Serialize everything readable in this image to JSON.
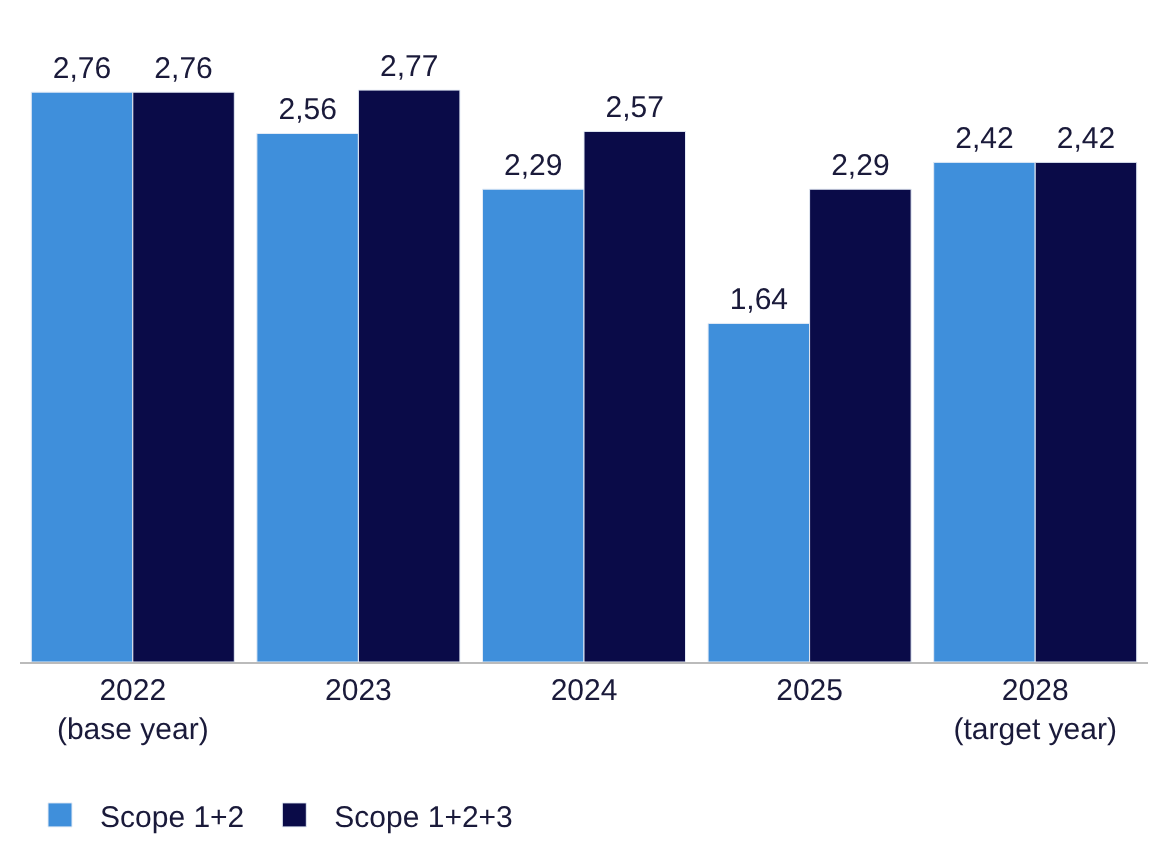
{
  "chart_data": {
    "type": "bar",
    "categories": [
      "2022\n(base year)",
      "2023",
      "2024",
      "2025",
      "2028\n(target year)"
    ],
    "series": [
      {
        "name": "Scope 1+2",
        "color": "#3f8fdb",
        "values": [
          2.76,
          2.56,
          2.29,
          1.64,
          2.42
        ],
        "value_labels": [
          "2,76",
          "2,56",
          "2,29",
          "1,64",
          "2,42"
        ]
      },
      {
        "name": "Scope 1+2+3",
        "color": "#0a0b48",
        "values": [
          2.76,
          2.77,
          2.57,
          2.29,
          2.42
        ],
        "value_labels": [
          "2,76",
          "2,77",
          "2,57",
          "2,29",
          "2,42"
        ]
      }
    ],
    "legend": "bottom left"
  }
}
